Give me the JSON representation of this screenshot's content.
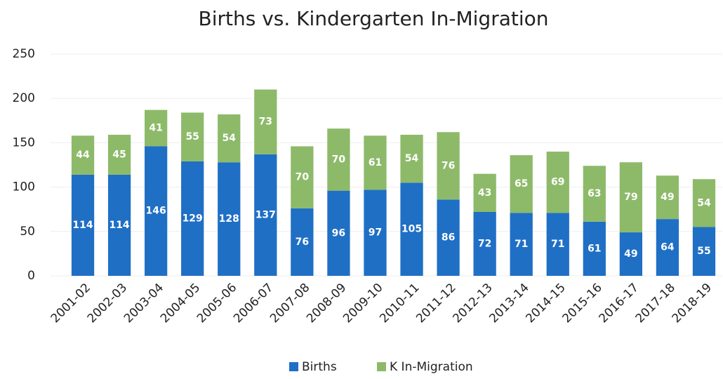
{
  "chart_data": {
    "type": "stacked_bar",
    "title": "Births vs. Kindergarten In-Migration",
    "categories": [
      "2001-02",
      "2002-03",
      "2003-04",
      "2004-05",
      "2005-06",
      "2006-07",
      "2007-08",
      "2008-09",
      "2009-10",
      "2010-11",
      "2011-12",
      "2012-13",
      "2013-14",
      "2014-15",
      "2015-16",
      "2016-17",
      "2017-18",
      "2018-19"
    ],
    "series": [
      {
        "name": "Births",
        "color": "#1f6fc5",
        "values": [
          114,
          114,
          146,
          129,
          128,
          137,
          76,
          96,
          97,
          105,
          86,
          72,
          71,
          71,
          61,
          49,
          64,
          55
        ]
      },
      {
        "name": "K In-Migration",
        "color": "#8dba69",
        "values": [
          44,
          45,
          41,
          55,
          54,
          73,
          70,
          70,
          61,
          54,
          76,
          43,
          65,
          69,
          63,
          79,
          49,
          54
        ]
      }
    ],
    "ylim": [
      0,
      250
    ],
    "yticks": [
      0,
      50,
      100,
      150,
      200,
      250
    ],
    "grid": true,
    "legend": "bottom"
  }
}
